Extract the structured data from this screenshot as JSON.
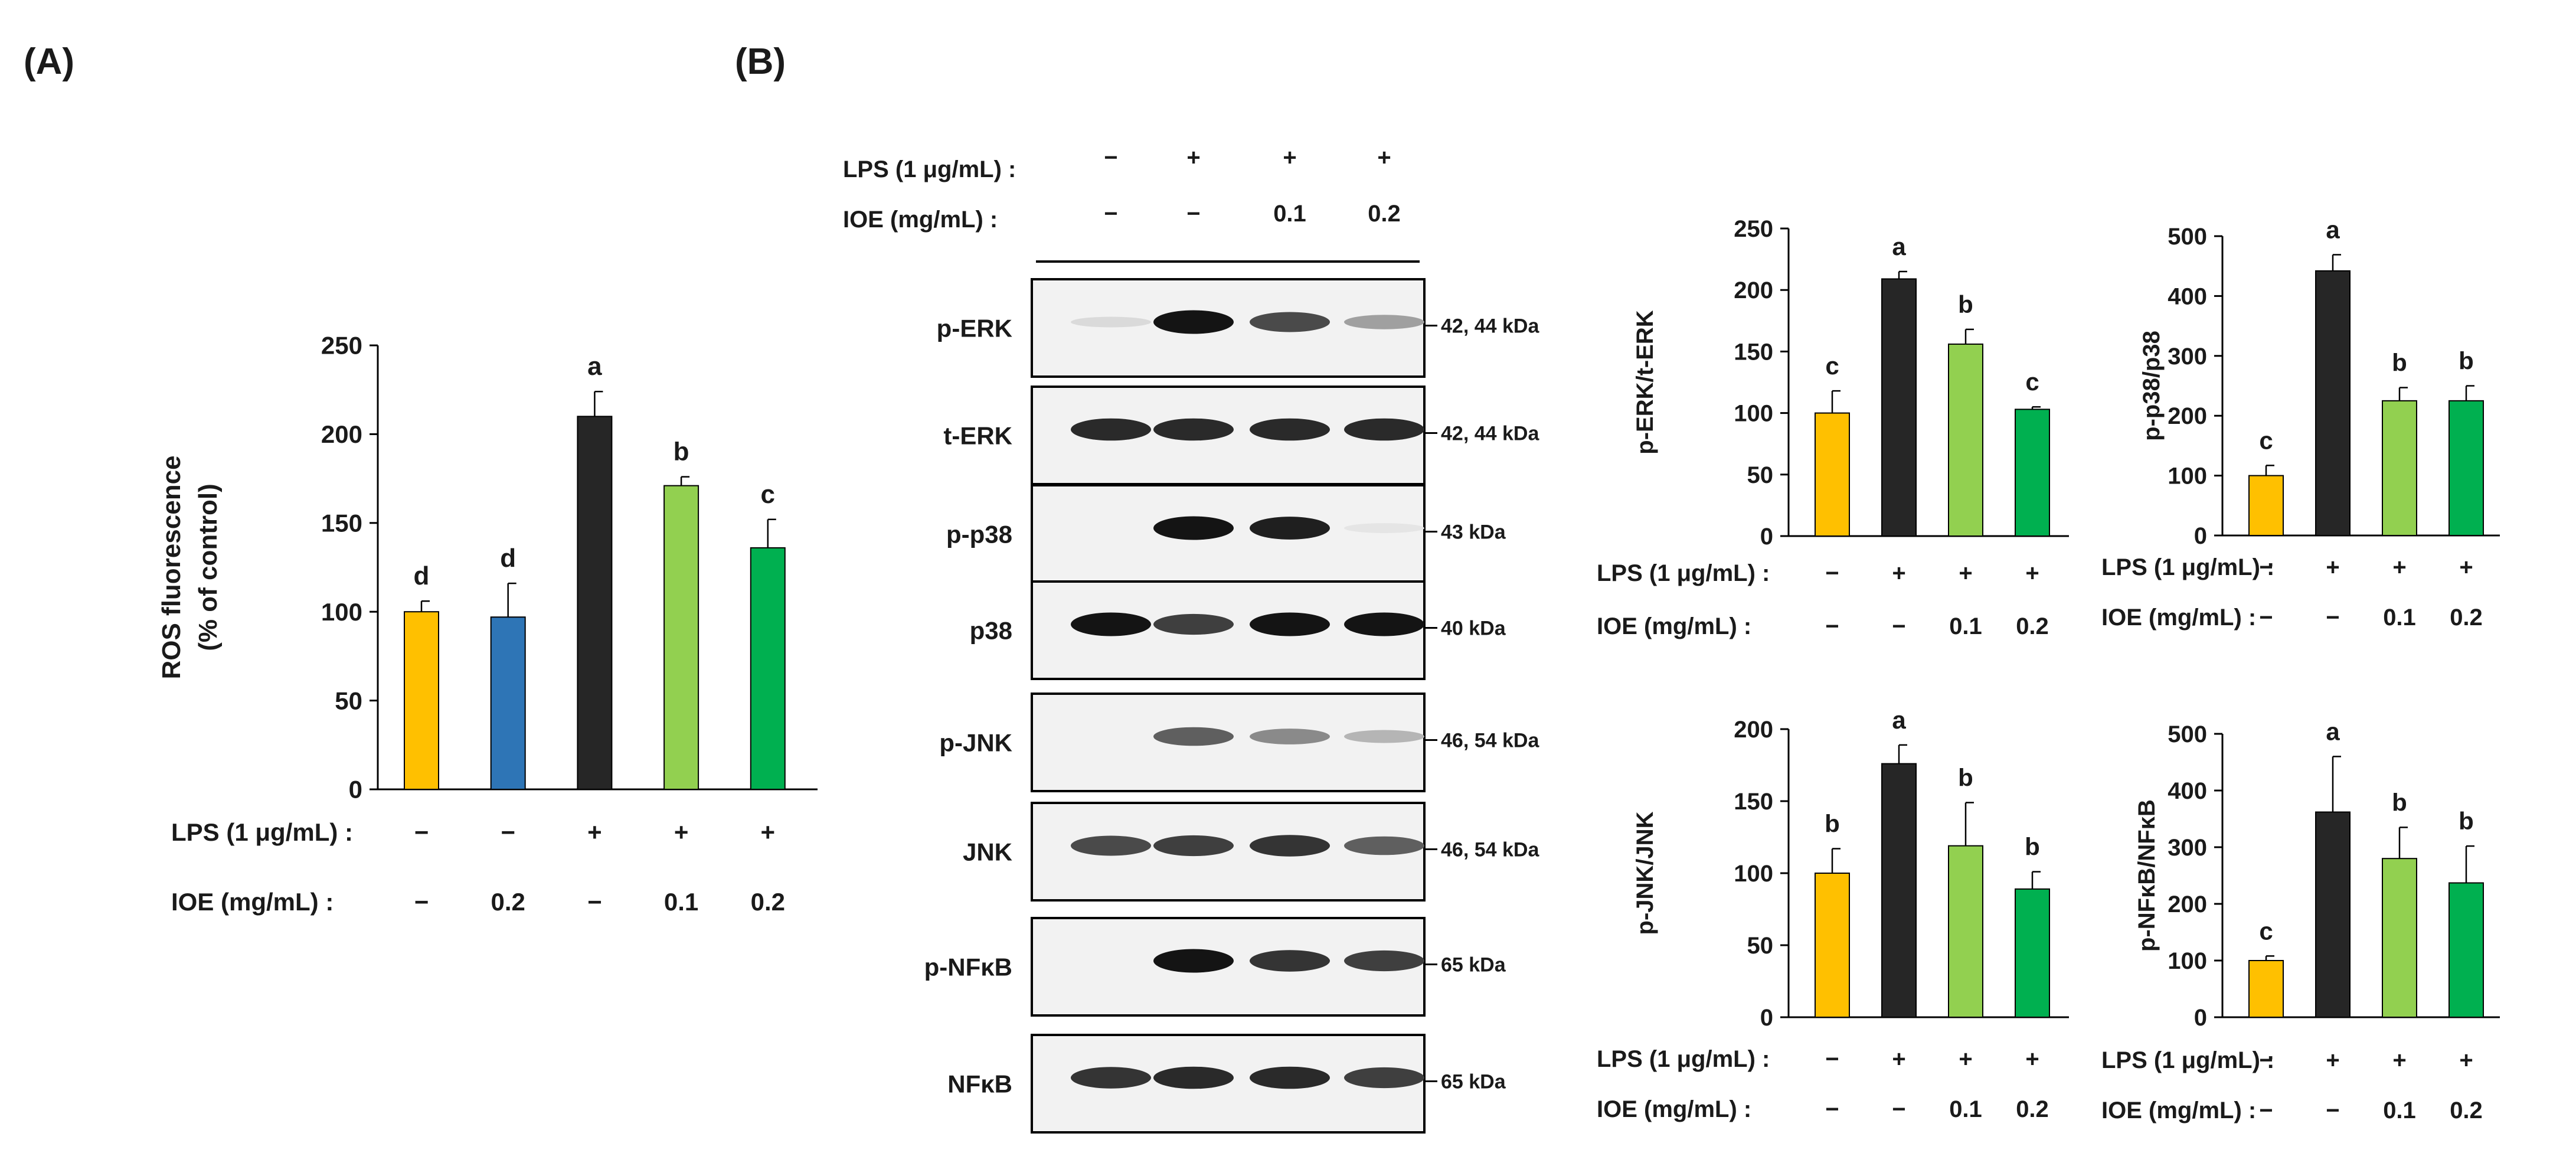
{
  "panels": {
    "A": "(A)",
    "B": "(B)"
  },
  "treatment_labels": {
    "lps": "LPS (1 μg/mL) :",
    "ioe_a": "IOE  (mg/mL) :",
    "ioe": "IOE (mg/mL) :"
  },
  "colors": {
    "c1": "#FFC000",
    "c2": "#2E75B6",
    "dark": "#262626",
    "light_green": "#92D050",
    "green": "#00B050"
  },
  "chart_data": [
    {
      "id": "ros",
      "type": "bar",
      "ylabel": "ROS fluorescence (% of control)",
      "ylim": [
        0,
        250
      ],
      "yticks": [
        0,
        50,
        100,
        150,
        200,
        250
      ],
      "values": [
        100,
        97,
        210,
        171,
        136
      ],
      "errors": [
        6,
        19,
        14,
        5,
        16
      ],
      "letters": [
        "d",
        "d",
        "a",
        "b",
        "c"
      ],
      "colors": [
        "#FFC000",
        "#2E75B6",
        "#262626",
        "#92D050",
        "#00B050"
      ],
      "lps": [
        "−",
        "−",
        "+",
        "+",
        "+"
      ],
      "ioe": [
        "−",
        "0.2",
        "−",
        "0.1",
        "0.2"
      ]
    },
    {
      "id": "perk",
      "type": "bar",
      "ylabel": "p-ERK/t-ERK",
      "ylim": [
        0,
        250
      ],
      "yticks": [
        0,
        50,
        100,
        150,
        200,
        250
      ],
      "values": [
        100,
        209,
        156,
        103
      ],
      "errors": [
        18,
        6,
        12,
        2
      ],
      "letters": [
        "c",
        "a",
        "b",
        "c"
      ],
      "colors": [
        "#FFC000",
        "#262626",
        "#92D050",
        "#00B050"
      ],
      "lps": [
        "−",
        "+",
        "+",
        "+"
      ],
      "ioe": [
        "−",
        "−",
        "0.1",
        "0.2"
      ]
    },
    {
      "id": "pp38",
      "type": "bar",
      "ylabel": "p-p38/p38",
      "ylim": [
        0,
        500
      ],
      "yticks": [
        0,
        100,
        200,
        300,
        400,
        500
      ],
      "values": [
        100,
        442,
        225,
        225
      ],
      "errors": [
        17,
        27,
        22,
        25
      ],
      "letters": [
        "c",
        "a",
        "b",
        "b"
      ],
      "colors": [
        "#FFC000",
        "#262626",
        "#92D050",
        "#00B050"
      ],
      "lps": [
        "−",
        "+",
        "+",
        "+"
      ],
      "ioe": [
        "−",
        "−",
        "0.1",
        "0.2"
      ]
    },
    {
      "id": "pjnk",
      "type": "bar",
      "ylabel": "p-JNK/JNK",
      "ylim": [
        0,
        200
      ],
      "yticks": [
        0,
        50,
        100,
        150,
        200
      ],
      "values": [
        100,
        176,
        119,
        89
      ],
      "errors": [
        17,
        13,
        30,
        12
      ],
      "letters": [
        "b",
        "a",
        "b",
        "b"
      ],
      "colors": [
        "#FFC000",
        "#262626",
        "#92D050",
        "#00B050"
      ],
      "lps": [
        "−",
        "+",
        "+",
        "+"
      ],
      "ioe": [
        "−",
        "−",
        "0.1",
        "0.2"
      ]
    },
    {
      "id": "pnfkb",
      "type": "bar",
      "ylabel": "p-NFκB/NFκB",
      "ylim": [
        0,
        500
      ],
      "yticks": [
        0,
        100,
        200,
        300,
        400,
        500
      ],
      "values": [
        100,
        362,
        280,
        237
      ],
      "errors": [
        8,
        98,
        55,
        65
      ],
      "letters": [
        "c",
        "a",
        "b",
        "b"
      ],
      "colors": [
        "#FFC000",
        "#262626",
        "#92D050",
        "#00B050"
      ],
      "lps": [
        "−",
        "+",
        "+",
        "+"
      ],
      "ioe": [
        "−",
        "−",
        "0.1",
        "0.2"
      ]
    }
  ],
  "blot": {
    "lps": [
      "−",
      "+",
      "+",
      "+"
    ],
    "ioe": [
      "−",
      "−",
      "0.1",
      "0.2"
    ],
    "rows": [
      {
        "label": "p-ERK",
        "kda": "42, 44 kDa",
        "bands": [
          0.08,
          1.0,
          0.75,
          0.35
        ]
      },
      {
        "label": "t-ERK",
        "kda": "42, 44 kDa",
        "bands": [
          0.9,
          0.9,
          0.9,
          0.9
        ]
      },
      {
        "label": "p-p38",
        "kda": "43 kDa",
        "bands": [
          0.0,
          1.0,
          0.95,
          0.03
        ]
      },
      {
        "label": "p38",
        "kda": "40 kDa",
        "bands": [
          1.0,
          0.8,
          1.0,
          1.0
        ]
      },
      {
        "label": "p-JNK",
        "kda": "46, 54 kDa",
        "bands": [
          0.0,
          0.65,
          0.45,
          0.25
        ]
      },
      {
        "label": "JNK",
        "kda": "46, 54 kDa",
        "bands": [
          0.75,
          0.8,
          0.85,
          0.65
        ]
      },
      {
        "label": "p-NFκB",
        "kda": "65 kDa",
        "bands": [
          0.0,
          1.0,
          0.85,
          0.8
        ]
      },
      {
        "label": "NFκB",
        "kda": "65 kDa",
        "bands": [
          0.85,
          0.9,
          0.9,
          0.8
        ]
      }
    ]
  }
}
